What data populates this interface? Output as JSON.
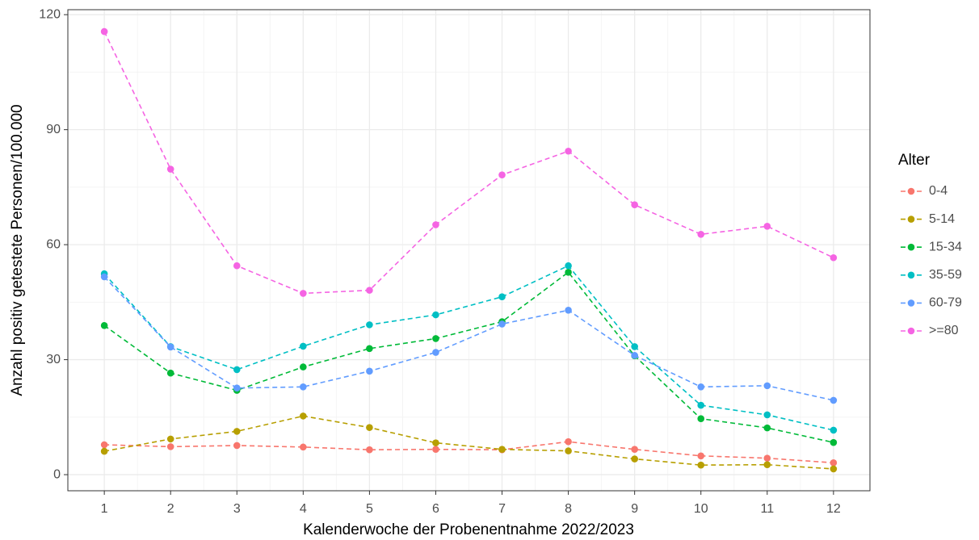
{
  "chart_data": {
    "type": "line",
    "xlabel": "Kalenderwoche der Probenentnahme 2022/2023",
    "ylabel": "Anzahl positiv getestete Personen/100.000",
    "legend_title": "Alter",
    "legend_position": "right",
    "grid": true,
    "line_style": "dashed",
    "x": [
      1,
      2,
      3,
      4,
      5,
      6,
      7,
      8,
      9,
      10,
      11,
      12
    ],
    "xlim": [
      0.45,
      12.55
    ],
    "xticks": [
      1,
      2,
      3,
      4,
      5,
      6,
      7,
      8,
      9,
      10,
      11,
      12
    ],
    "ylim": [
      -4.2,
      121.3
    ],
    "yticks": [
      0,
      30,
      60,
      90,
      120
    ],
    "series": [
      {
        "name": "0-4",
        "color": "#F8766D",
        "values": [
          7.8,
          7.3,
          7.6,
          7.2,
          6.5,
          6.6,
          6.5,
          8.6,
          6.6,
          4.9,
          4.3,
          3.1
        ]
      },
      {
        "name": "5-14",
        "color": "#B79F00",
        "values": [
          6.1,
          9.3,
          11.3,
          15.3,
          12.3,
          8.3,
          6.6,
          6.2,
          4.1,
          2.5,
          2.6,
          1.5
        ]
      },
      {
        "name": "15-34",
        "color": "#00BA38",
        "values": [
          38.9,
          26.5,
          22.0,
          28.1,
          32.9,
          35.5,
          39.9,
          52.8,
          31.0,
          14.6,
          12.2,
          8.4
        ]
      },
      {
        "name": "35-59",
        "color": "#00BFC4",
        "values": [
          52.4,
          33.4,
          27.4,
          33.5,
          39.1,
          41.7,
          46.4,
          54.5,
          33.4,
          18.1,
          15.6,
          11.6
        ]
      },
      {
        "name": "60-79",
        "color": "#619CFF",
        "values": [
          51.6,
          33.3,
          22.6,
          22.9,
          27.0,
          31.9,
          39.3,
          42.9,
          31.1,
          22.9,
          23.2,
          19.4
        ]
      },
      {
        "name": ">=80",
        "color": "#F564E3",
        "values": [
          115.6,
          79.7,
          54.5,
          47.3,
          48.1,
          65.2,
          78.2,
          84.4,
          70.4,
          62.7,
          64.8,
          56.6
        ]
      }
    ]
  }
}
